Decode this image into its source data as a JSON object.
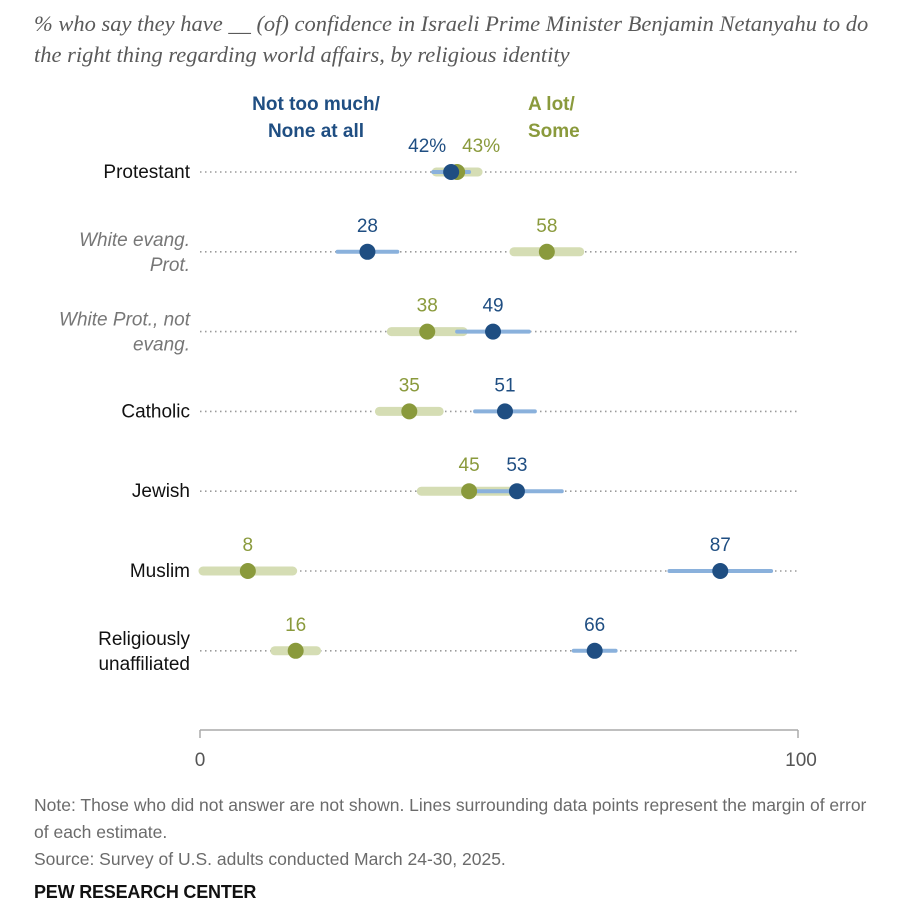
{
  "title": "% who say they have __ (of) confidence in Israeli Prime Minister Benjamin Netanyahu to do the right thing regarding world affairs, by religious identity",
  "note_line1": "Note: Those who did not answer are not shown. Lines surrounding data points represent the margin of error of each estimate.",
  "note_line2": "Source: Survey of U.S. adults conducted March 24-30, 2025.",
  "brand": "PEW RESEARCH CENTER",
  "colors": {
    "not_much": "#1f4e82",
    "not_much_ci": "#8ab1dc",
    "a_lot": "#8a9a3c",
    "a_lot_ci": "#d5ddb4",
    "dots": "#9a9a9a",
    "axis": "#aaaaaa",
    "category": "#111111",
    "subgroup": "#777777"
  },
  "chart_data": {
    "type": "dot",
    "xlim": [
      0,
      100
    ],
    "x_ticks": [
      "0",
      "100"
    ],
    "legend": [
      {
        "key": "not_much",
        "lines": [
          "Not too much/",
          "None at all"
        ]
      },
      {
        "key": "a_lot",
        "lines": [
          "A lot/",
          "Some"
        ]
      }
    ],
    "categories": [
      {
        "lines": [
          "Protestant"
        ],
        "italic": false,
        "not_much": 42,
        "a_lot": 43,
        "not_much_label": "42%",
        "a_lot_label": "43%",
        "not_much_moe": 3,
        "a_lot_moe": 3.5
      },
      {
        "lines": [
          "White evang.",
          "Prot."
        ],
        "italic": true,
        "not_much": 28,
        "a_lot": 58,
        "not_much_label": "28",
        "a_lot_label": "58",
        "not_much_moe": 5,
        "a_lot_moe": 5.5
      },
      {
        "lines": [
          "White Prot., not",
          "evang."
        ],
        "italic": true,
        "not_much": 49,
        "a_lot": 38,
        "not_much_label": "49",
        "a_lot_label": "38",
        "not_much_moe": 6,
        "a_lot_moe": 6
      },
      {
        "lines": [
          "Catholic"
        ],
        "italic": false,
        "not_much": 51,
        "a_lot": 35,
        "not_much_label": "51",
        "a_lot_label": "35",
        "not_much_moe": 5,
        "a_lot_moe": 5
      },
      {
        "lines": [
          "Jewish"
        ],
        "italic": false,
        "not_much": 53,
        "a_lot": 45,
        "not_much_label": "53",
        "a_lot_label": "45",
        "not_much_moe": 7.5,
        "a_lot_moe": 8
      },
      {
        "lines": [
          "Muslim"
        ],
        "italic": false,
        "not_much": 87,
        "a_lot": 8,
        "not_much_label": "87",
        "a_lot_label": "8",
        "not_much_moe": 8.5,
        "a_lot_moe": 7.5
      },
      {
        "lines": [
          "Religiously",
          "unaffiliated"
        ],
        "italic": false,
        "not_much": 66,
        "a_lot": 16,
        "not_much_label": "66",
        "a_lot_label": "16",
        "not_much_moe": 3.5,
        "a_lot_moe": 3.5
      }
    ]
  }
}
